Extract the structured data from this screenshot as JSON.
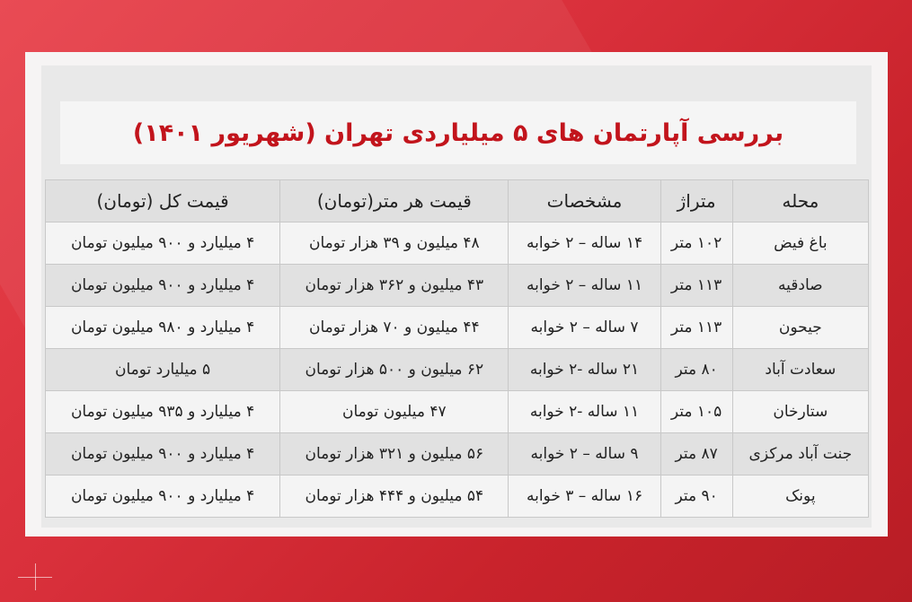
{
  "title": "بررسی آپارتمان های ۵ میلیاردی تهران (شهریور ۱۴۰۱)",
  "colors": {
    "accent": "#c2141c",
    "background": "#d9303b"
  },
  "table": {
    "headers": [
      "محله",
      "متراژ",
      "مشخصات",
      "قیمت هر متر(تومان)",
      "قیمت کل (تومان)"
    ],
    "rows": [
      [
        "باغ فیض",
        "۱۰۲ متر",
        "۱۴ ساله – ۲ خوابه",
        "۴۸ میلیون و ۳۹ هزار تومان",
        "۴ میلیارد و ۹۰۰ میلیون تومان"
      ],
      [
        "صادقیه",
        "۱۱۳ متر",
        "۱۱ ساله – ۲ خوابه",
        "۴۳ میلیون و ۳۶۲ هزار تومان",
        "۴ میلیارد و ۹۰۰ میلیون تومان"
      ],
      [
        "جیحون",
        "۱۱۳ متر",
        "۷ ساله  – ۲ خوابه",
        "۴۴ میلیون و ۷۰ هزار تومان",
        "۴ میلیارد و ۹۸۰ میلیون تومان"
      ],
      [
        "سعادت آباد",
        "۸۰ متر",
        "۲۱ ساله -۲ خوابه",
        "۶۲ میلیون و ۵۰۰ هزار تومان",
        "۵ میلیارد تومان"
      ],
      [
        "ستارخان",
        "۱۰۵ متر",
        "۱۱ ساله -۲ خوابه",
        "۴۷ میلیون تومان",
        "۴ میلیارد و ۹۳۵ میلیون تومان"
      ],
      [
        "جنت آباد مرکزی",
        "۸۷ متر",
        "۹ ساله – ۲ خوابه",
        "۵۶ میلیون و ۳۲۱ هزار تومان",
        "۴ میلیارد و ۹۰۰ میلیون تومان"
      ],
      [
        "پونک",
        "۹۰ متر",
        "۱۶ ساله – ۳ خوابه",
        "۵۴ میلیون و ۴۴۴ هزار تومان",
        "۴ میلیارد و ۹۰۰ میلیون تومان"
      ]
    ]
  }
}
